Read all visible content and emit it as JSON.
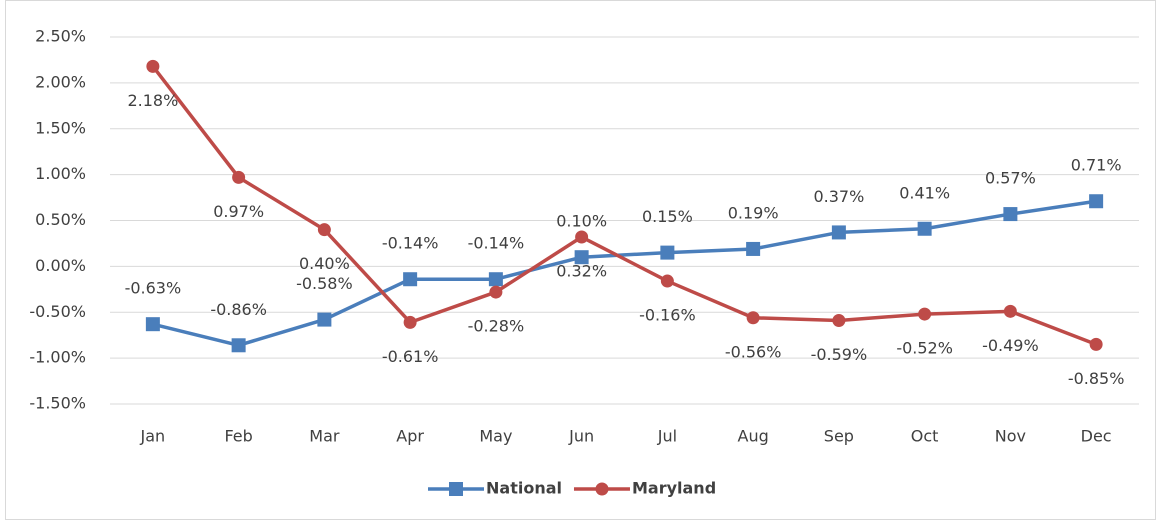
{
  "chart_data": {
    "type": "line",
    "categories": [
      "Jan",
      "Feb",
      "Mar",
      "Apr",
      "May",
      "Jun",
      "Jul",
      "Aug",
      "Sep",
      "Oct",
      "Nov",
      "Dec"
    ],
    "series": [
      {
        "name": "National",
        "color": "#4a7ebb",
        "marker": "square",
        "values": [
          -0.63,
          -0.86,
          -0.58,
          -0.14,
          -0.14,
          0.1,
          0.15,
          0.19,
          0.37,
          0.41,
          0.57,
          0.71
        ],
        "value_labels": [
          "-0.63%",
          "-0.86%",
          "-0.58%",
          "-0.14%",
          "-0.14%",
          "0.10%",
          "0.15%",
          "0.19%",
          "0.37%",
          "0.41%",
          "0.57%",
          "0.71%"
        ]
      },
      {
        "name": "Maryland",
        "color": "#be4b48",
        "marker": "circle",
        "values": [
          2.18,
          0.97,
          0.4,
          -0.61,
          -0.28,
          0.32,
          -0.16,
          -0.56,
          -0.59,
          -0.52,
          -0.49,
          -0.85
        ],
        "value_labels": [
          "2.18%",
          "0.97%",
          "0.40%",
          "-0.61%",
          "-0.28%",
          "0.32%",
          "-0.16%",
          "-0.56%",
          "-0.59%",
          "-0.52%",
          "-0.49%",
          "-0.85%"
        ]
      }
    ],
    "ylim": [
      -1.5,
      2.5
    ],
    "yticks": [
      {
        "value": -1.5,
        "label": "-1.50%"
      },
      {
        "value": -1.0,
        "label": "-1.00%"
      },
      {
        "value": -0.5,
        "label": "-0.50%"
      },
      {
        "value": 0,
        "label": "0.00%"
      },
      {
        "value": 0.5,
        "label": "0.50%"
      },
      {
        "value": 1.0,
        "label": "1.00%"
      },
      {
        "value": 1.5,
        "label": "1.50%"
      },
      {
        "value": 2.0,
        "label": "2.00%"
      },
      {
        "value": 2.5,
        "label": "2.50%"
      }
    ],
    "grid": true,
    "legend": "bottom"
  }
}
